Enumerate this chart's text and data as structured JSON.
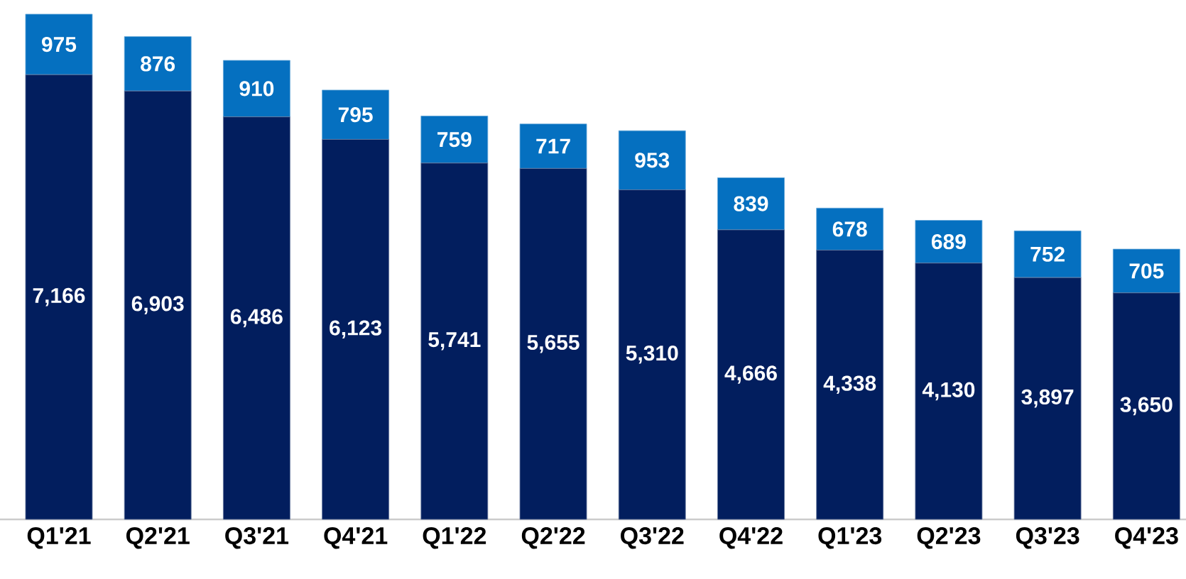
{
  "chart_data": {
    "type": "bar",
    "stacked": true,
    "categories": [
      "Q1'21",
      "Q2'21",
      "Q3'21",
      "Q4'21",
      "Q1'22",
      "Q2'22",
      "Q3'22",
      "Q4'22",
      "Q1'23",
      "Q2'23",
      "Q3'23",
      "Q4'23"
    ],
    "series": [
      {
        "color": "#021e5e",
        "values": [
          7166,
          6903,
          6486,
          6123,
          5741,
          5655,
          5310,
          4666,
          4338,
          4130,
          3897,
          3650
        ],
        "value_labels": [
          "7,166",
          "6,903",
          "6,486",
          "6,123",
          "5,741",
          "5,655",
          "5,310",
          "4,666",
          "4,338",
          "4,130",
          "3,897",
          "3,650"
        ]
      },
      {
        "color": "#0570c0",
        "values": [
          975,
          876,
          910,
          795,
          759,
          717,
          953,
          839,
          678,
          689,
          752,
          705
        ],
        "value_labels": [
          "975",
          "876",
          "910",
          "795",
          "759",
          "717",
          "953",
          "839",
          "678",
          "689",
          "752",
          "705"
        ]
      }
    ]
  }
}
